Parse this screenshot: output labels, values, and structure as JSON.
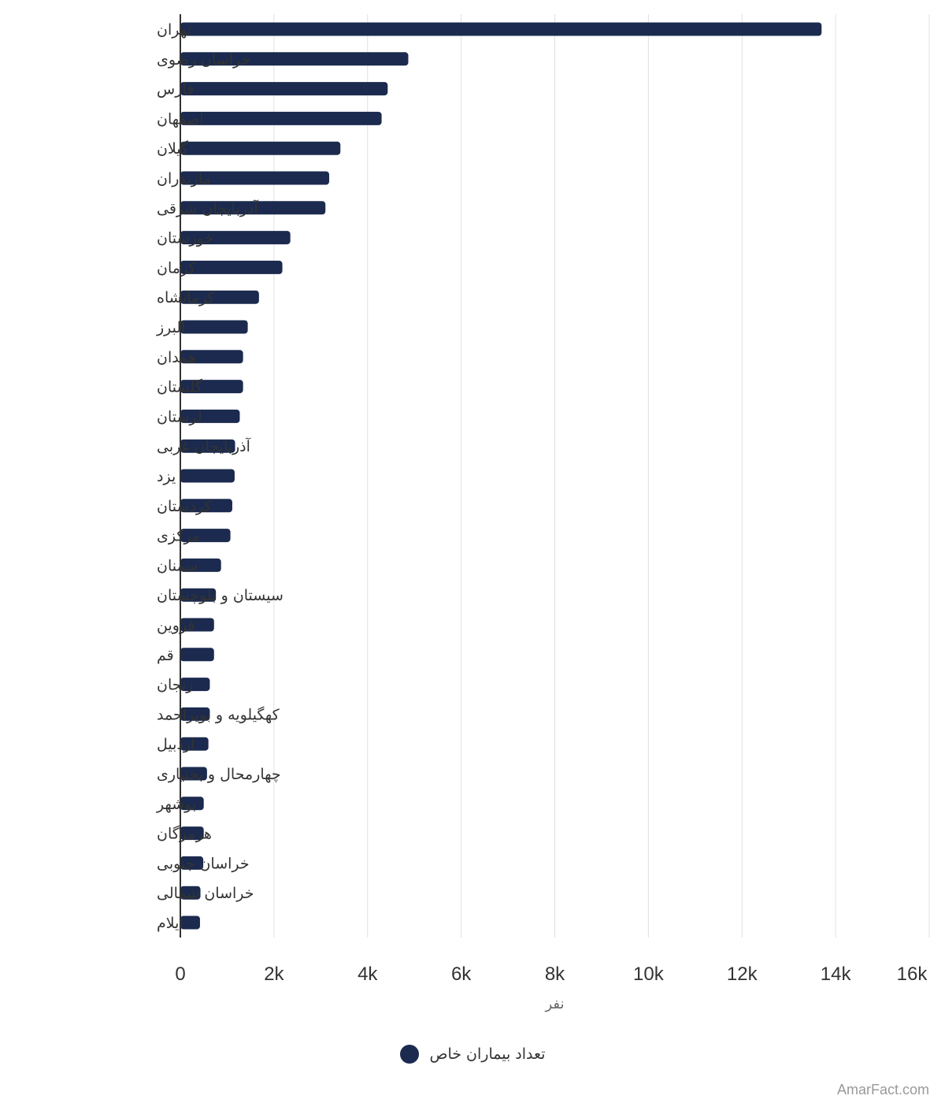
{
  "chart_data": {
    "type": "bar",
    "orientation": "horizontal",
    "categories": [
      "تهران",
      "خراسان رضوی",
      "فارس",
      "اصفهان",
      "گیلان",
      "مازندران",
      "آذربایجان شرقی",
      "خوزستان",
      "کرمان",
      "کرمانشاه",
      "البرز",
      "همدان",
      "گلستان",
      "لرستان",
      "آذربایجان غربی",
      "یزد",
      "کردستان",
      "مرکزی",
      "سمنان",
      "سیستان و بلوچستان",
      "قزوین",
      "قم",
      "زنجان",
      "کهگیلویه و بویراحمد",
      "اردبیل",
      "چهارمحال و بختیاری",
      "بوشهر",
      "هرمزگان",
      "خراسان جنوبی",
      "خراسان شمالی",
      "ایلام"
    ],
    "series": [
      {
        "name": "تعداد بیماران خاص",
        "color": "#1b2a4e",
        "values": [
          13700,
          4870,
          4430,
          4300,
          3420,
          3180,
          3100,
          2350,
          2180,
          1680,
          1440,
          1340,
          1340,
          1270,
          1170,
          1160,
          1110,
          1070,
          870,
          760,
          720,
          720,
          630,
          630,
          600,
          570,
          500,
          500,
          490,
          430,
          420
        ]
      }
    ],
    "xlim": [
      0,
      16000
    ],
    "xticks": [
      0,
      2000,
      4000,
      6000,
      8000,
      10000,
      12000,
      14000,
      16000
    ],
    "xtick_labels": [
      "0",
      "2k",
      "4k",
      "6k",
      "8k",
      "10k",
      "12k",
      "14k",
      "16k"
    ],
    "xlabel": "نفر",
    "ylabel": "",
    "grid": true,
    "legend_position": "bottom-center"
  },
  "credit": "AmarFact.com"
}
